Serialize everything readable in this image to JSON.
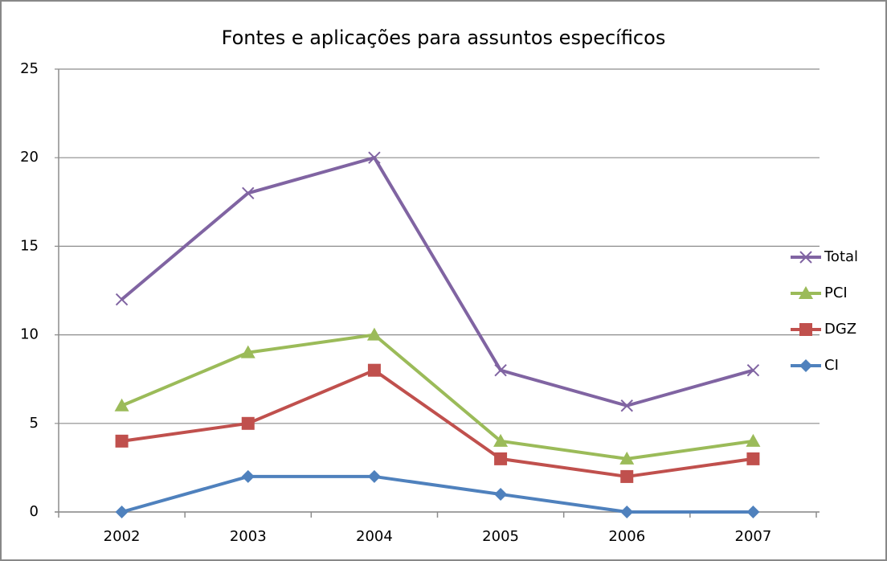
{
  "chart_data": {
    "type": "line",
    "title": "Fontes e aplicações para assuntos específicos",
    "categories": [
      "2002",
      "2003",
      "2004",
      "2005",
      "2006",
      "2007"
    ],
    "series": [
      {
        "name": "Total",
        "color": "#8064a2",
        "marker": "x",
        "values": [
          12,
          18,
          20,
          8,
          6,
          8
        ]
      },
      {
        "name": "PCI",
        "color": "#9bbb59",
        "marker": "triangle",
        "values": [
          6,
          9,
          10,
          4,
          3,
          4
        ]
      },
      {
        "name": "DGZ",
        "color": "#c0504d",
        "marker": "square",
        "values": [
          4,
          5,
          8,
          3,
          2,
          3
        ]
      },
      {
        "name": "CI",
        "color": "#4f81bd",
        "marker": "diamond",
        "values": [
          0,
          2,
          2,
          1,
          0,
          0
        ]
      }
    ],
    "ylim": [
      0,
      25
    ],
    "yticks": [
      0,
      5,
      10,
      15,
      20,
      25
    ],
    "grid": true,
    "legend": "right"
  }
}
